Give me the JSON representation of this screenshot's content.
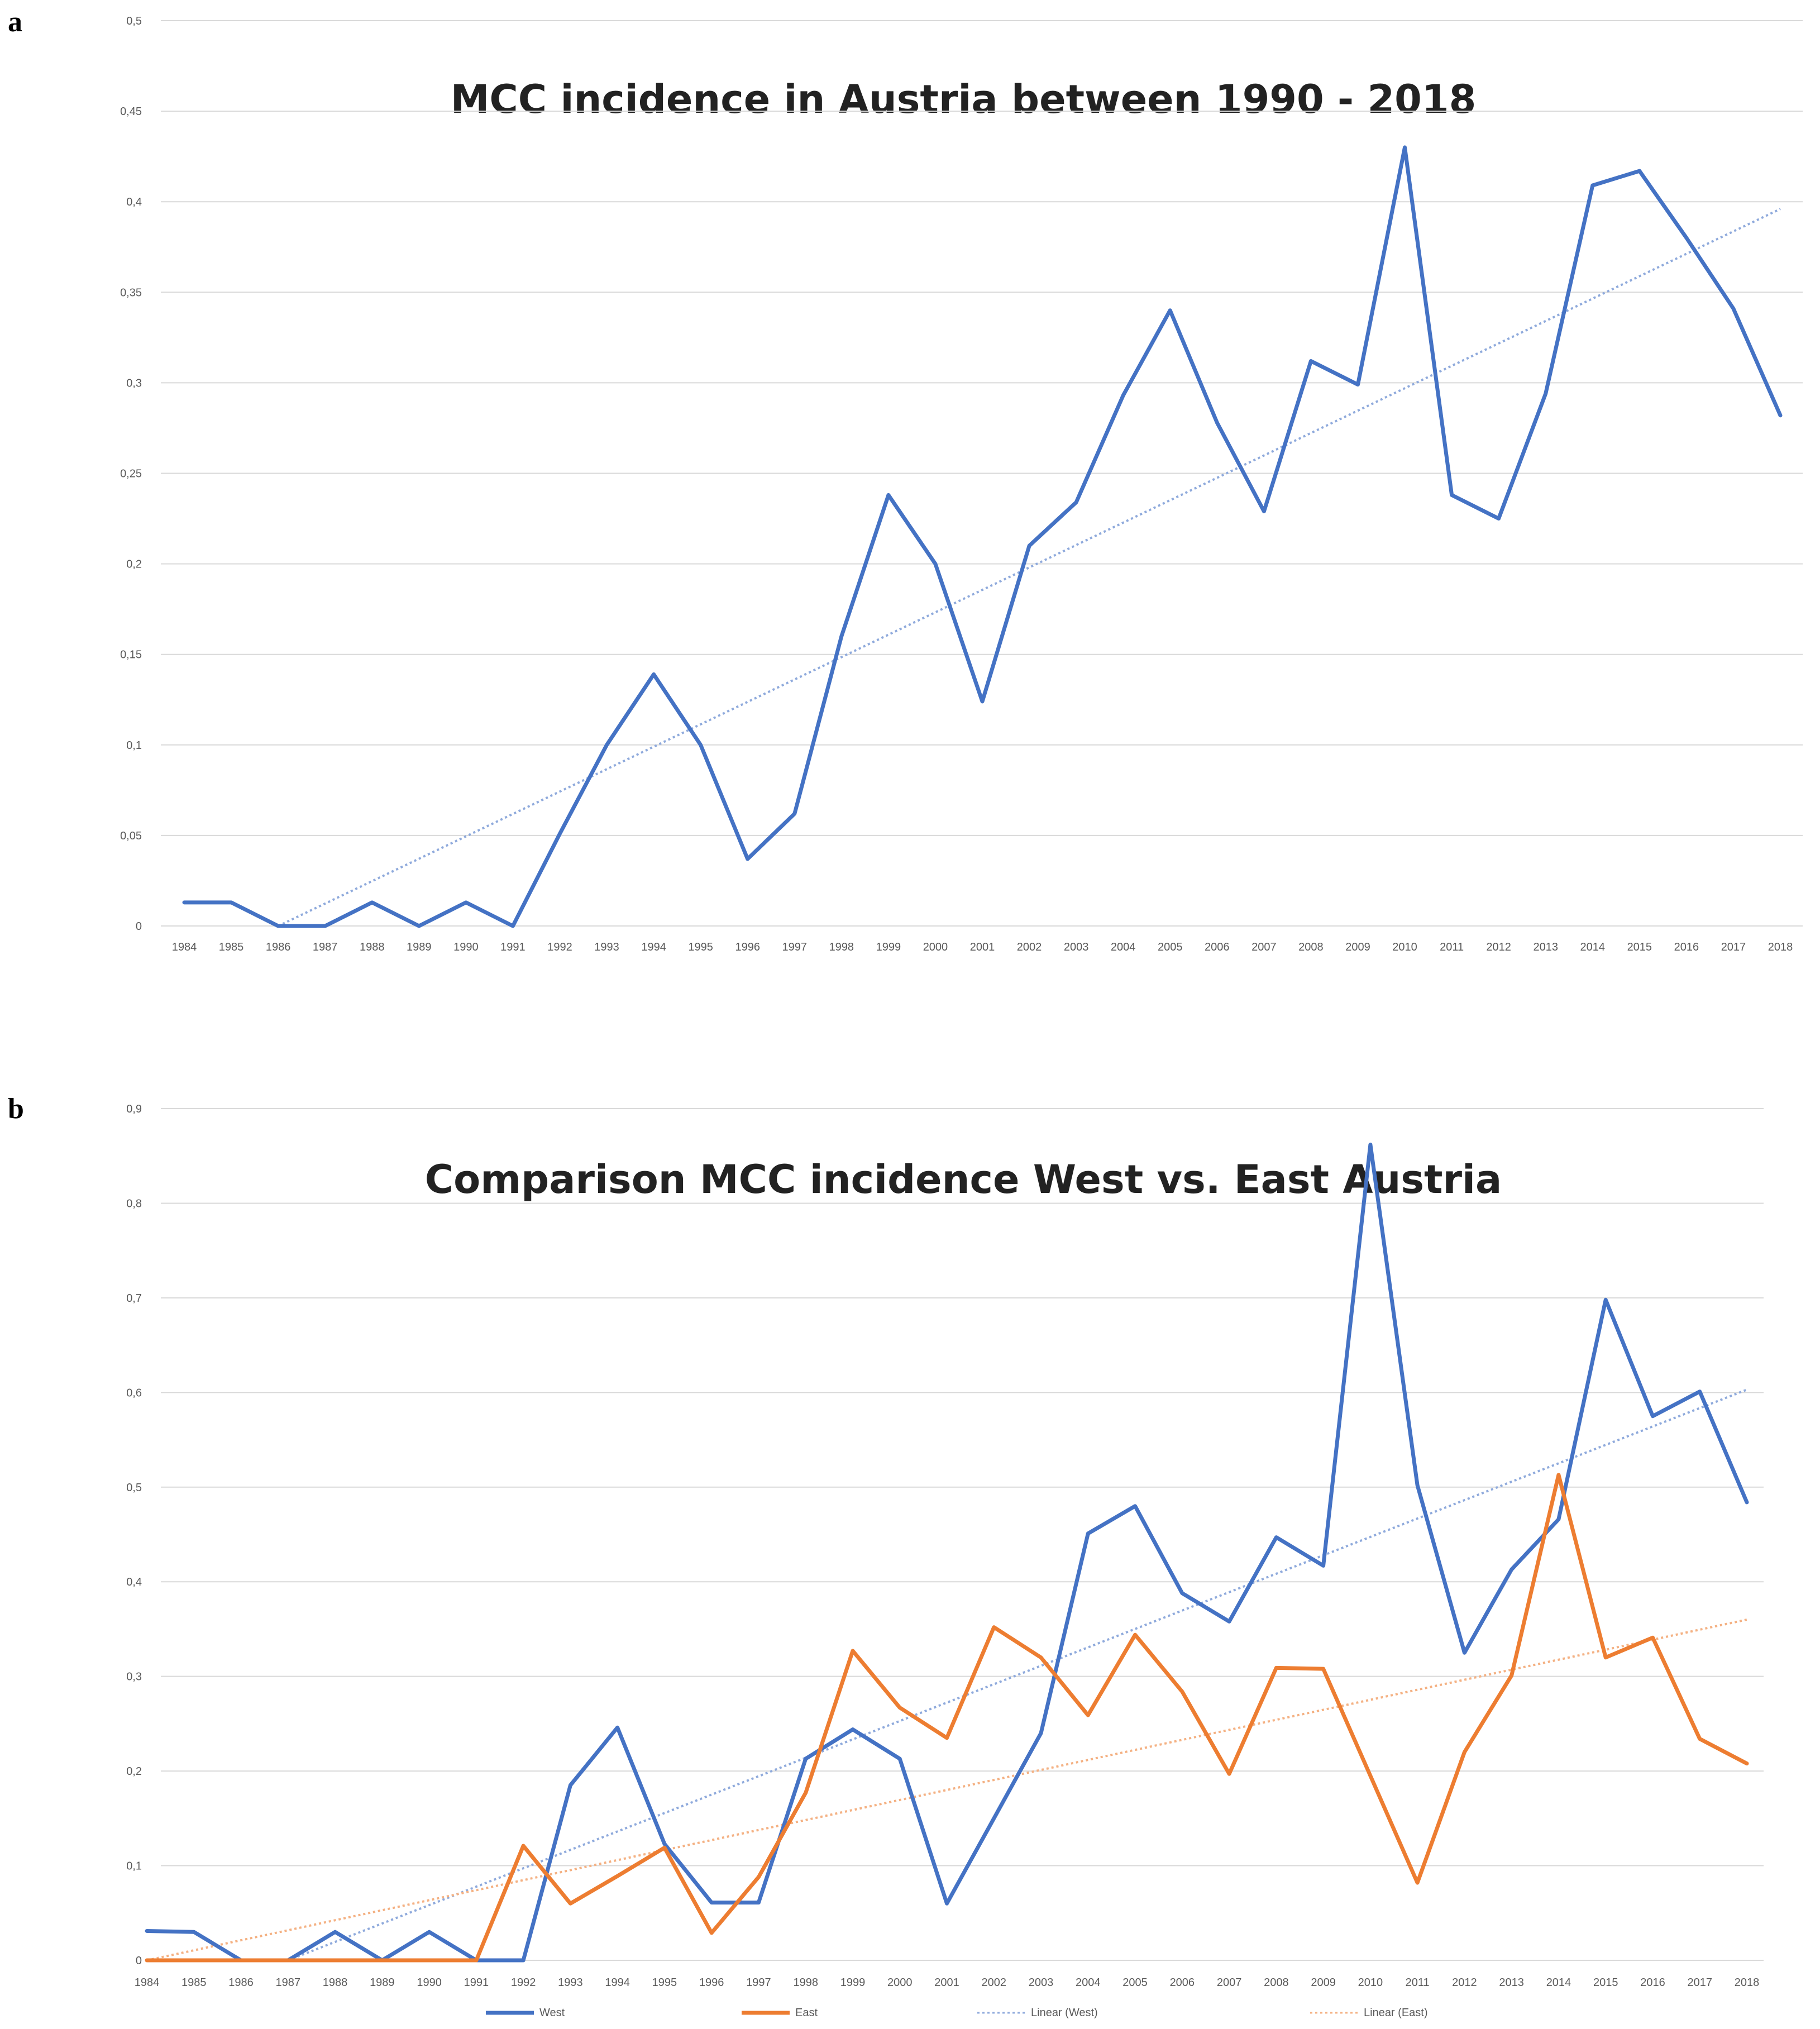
{
  "chart_data": [
    {
      "type": "line",
      "panel_label": "a",
      "title": "MCC incidence in Austria between 1990 - 2018",
      "xlabel": "",
      "ylabel": "",
      "x": [
        "1984",
        "1985",
        "1986",
        "1987",
        "1988",
        "1989",
        "1990",
        "1991",
        "1992",
        "1993",
        "1994",
        "1995",
        "1996",
        "1997",
        "1998",
        "1999",
        "2000",
        "2001",
        "2002",
        "2003",
        "2004",
        "2005",
        "2006",
        "2007",
        "2008",
        "2009",
        "2010",
        "2011",
        "2012",
        "2013",
        "2014",
        "2015",
        "2016",
        "2017",
        "2018"
      ],
      "ylim": [
        0,
        0.5
      ],
      "yticks": [
        "0",
        "0,05",
        "0,1",
        "0,15",
        "0,2",
        "0,25",
        "0,3",
        "0,35",
        "0,4",
        "0,45",
        "0,5"
      ],
      "grid": true,
      "legend": "none",
      "series": [
        {
          "color": "#4472c4",
          "values": [
            0.013,
            0.013,
            0,
            0,
            0.013,
            0,
            0.013,
            0,
            0.051,
            0.1,
            0.139,
            0.1,
            0.037,
            0.062,
            0.16,
            0.238,
            0.2,
            0.124,
            0.21,
            0.234,
            0.293,
            0.34,
            0.278,
            0.229,
            0.312,
            0.299,
            0.43,
            0.238,
            0.225,
            0.294,
            0.409,
            0.417,
            0.38,
            0.341,
            0.282
          ]
        }
      ],
      "trendlines": [
        {
          "type": "linear",
          "color": "#8faadc",
          "start_x": "1986",
          "start_y": 0.0,
          "end_x": "2018",
          "end_y": 0.396
        }
      ]
    },
    {
      "type": "line",
      "panel_label": "b",
      "title": "Comparison MCC incidence West vs. East Austria",
      "xlabel": "",
      "ylabel": "",
      "x": [
        "1984",
        "1985",
        "1986",
        "1987",
        "1988",
        "1989",
        "1990",
        "1991",
        "1992",
        "1993",
        "1994",
        "1995",
        "1996",
        "1997",
        "1998",
        "1999",
        "2000",
        "2001",
        "2002",
        "2003",
        "2004",
        "2005",
        "2006",
        "2007",
        "2008",
        "2009",
        "2010",
        "2011",
        "2012",
        "2013",
        "2014",
        "2015",
        "2016",
        "2017",
        "2018"
      ],
      "ylim": [
        0,
        0.9
      ],
      "yticks": [
        "0",
        "0,1",
        "0,2",
        "0,3",
        "0,4",
        "0,5",
        "0,6",
        "0,7",
        "0,8",
        "0,9"
      ],
      "grid": true,
      "legend": "bottom",
      "series": [
        {
          "name": "West",
          "color": "#4472c4",
          "values": [
            0.031,
            0.03,
            0,
            0,
            0.03,
            0,
            0.03,
            0,
            0,
            0.185,
            0.246,
            0.123,
            0.061,
            0.061,
            0.213,
            0.244,
            0.213,
            0.06,
            0.15,
            0.24,
            0.451,
            0.48,
            0.388,
            0.358,
            0.447,
            0.417,
            0.862,
            0.502,
            0.325,
            0.413,
            0.466,
            0.698,
            0.575,
            0.601,
            0.484
          ]
        },
        {
          "name": "East",
          "color": "#ed7d31",
          "values": [
            0,
            0,
            0,
            0,
            0,
            0,
            0,
            0,
            0.121,
            0.06,
            0.089,
            0.119,
            0.029,
            0.088,
            0.177,
            0.327,
            0.267,
            0.235,
            0.352,
            0.32,
            0.259,
            0.344,
            0.284,
            0.197,
            0.309,
            0.308,
            0.195,
            0.082,
            0.22,
            0.301,
            0.513,
            0.32,
            0.341,
            0.234,
            0.208
          ]
        }
      ],
      "trendlines": [
        {
          "name": "Linear (West)",
          "type": "linear",
          "color": "#8faadc",
          "start_x": "1987",
          "start_y": 0.0,
          "end_x": "2018",
          "end_y": 0.603
        },
        {
          "name": "Linear (East)",
          "type": "linear",
          "color": "#f4b183",
          "start_x": "1984",
          "start_y": 0.0,
          "end_x": "2018",
          "end_y": 0.36
        }
      ]
    }
  ]
}
